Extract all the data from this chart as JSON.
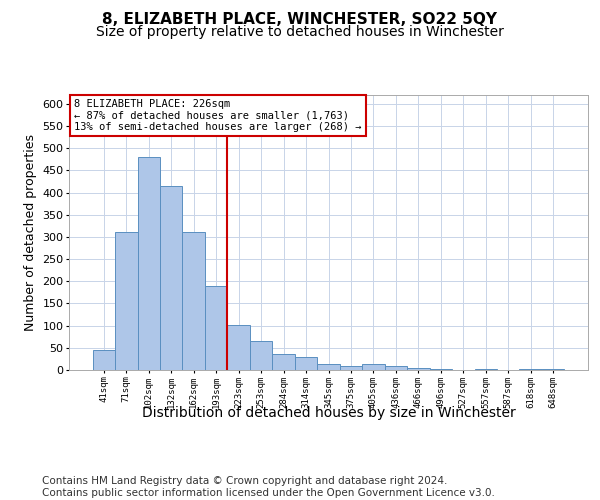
{
  "title": "8, ELIZABETH PLACE, WINCHESTER, SO22 5QY",
  "subtitle": "Size of property relative to detached houses in Winchester",
  "xlabel": "Distribution of detached houses by size in Winchester",
  "ylabel": "Number of detached properties",
  "categories": [
    "41sqm",
    "71sqm",
    "102sqm",
    "132sqm",
    "162sqm",
    "193sqm",
    "223sqm",
    "253sqm",
    "284sqm",
    "314sqm",
    "345sqm",
    "375sqm",
    "405sqm",
    "436sqm",
    "466sqm",
    "496sqm",
    "527sqm",
    "557sqm",
    "587sqm",
    "618sqm",
    "648sqm"
  ],
  "values": [
    45,
    312,
    480,
    415,
    312,
    190,
    102,
    65,
    37,
    30,
    13,
    10,
    13,
    10,
    5,
    3,
    0,
    3,
    0,
    3,
    3
  ],
  "bar_color": "#aec6e8",
  "bar_edge_color": "#5a8fc0",
  "vline_index": 6,
  "vline_color": "#cc0000",
  "annotation_text": "8 ELIZABETH PLACE: 226sqm\n← 87% of detached houses are smaller (1,763)\n13% of semi-detached houses are larger (268) →",
  "annotation_box_edgecolor": "#cc0000",
  "ylim": [
    0,
    620
  ],
  "yticks": [
    0,
    50,
    100,
    150,
    200,
    250,
    300,
    350,
    400,
    450,
    500,
    550,
    600
  ],
  "footer": "Contains HM Land Registry data © Crown copyright and database right 2024.\nContains public sector information licensed under the Open Government Licence v3.0.",
  "title_fontsize": 11,
  "subtitle_fontsize": 10,
  "xlabel_fontsize": 10,
  "ylabel_fontsize": 9,
  "footer_fontsize": 7.5,
  "bg_color": "#ffffff",
  "grid_color": "#c8d4e8"
}
